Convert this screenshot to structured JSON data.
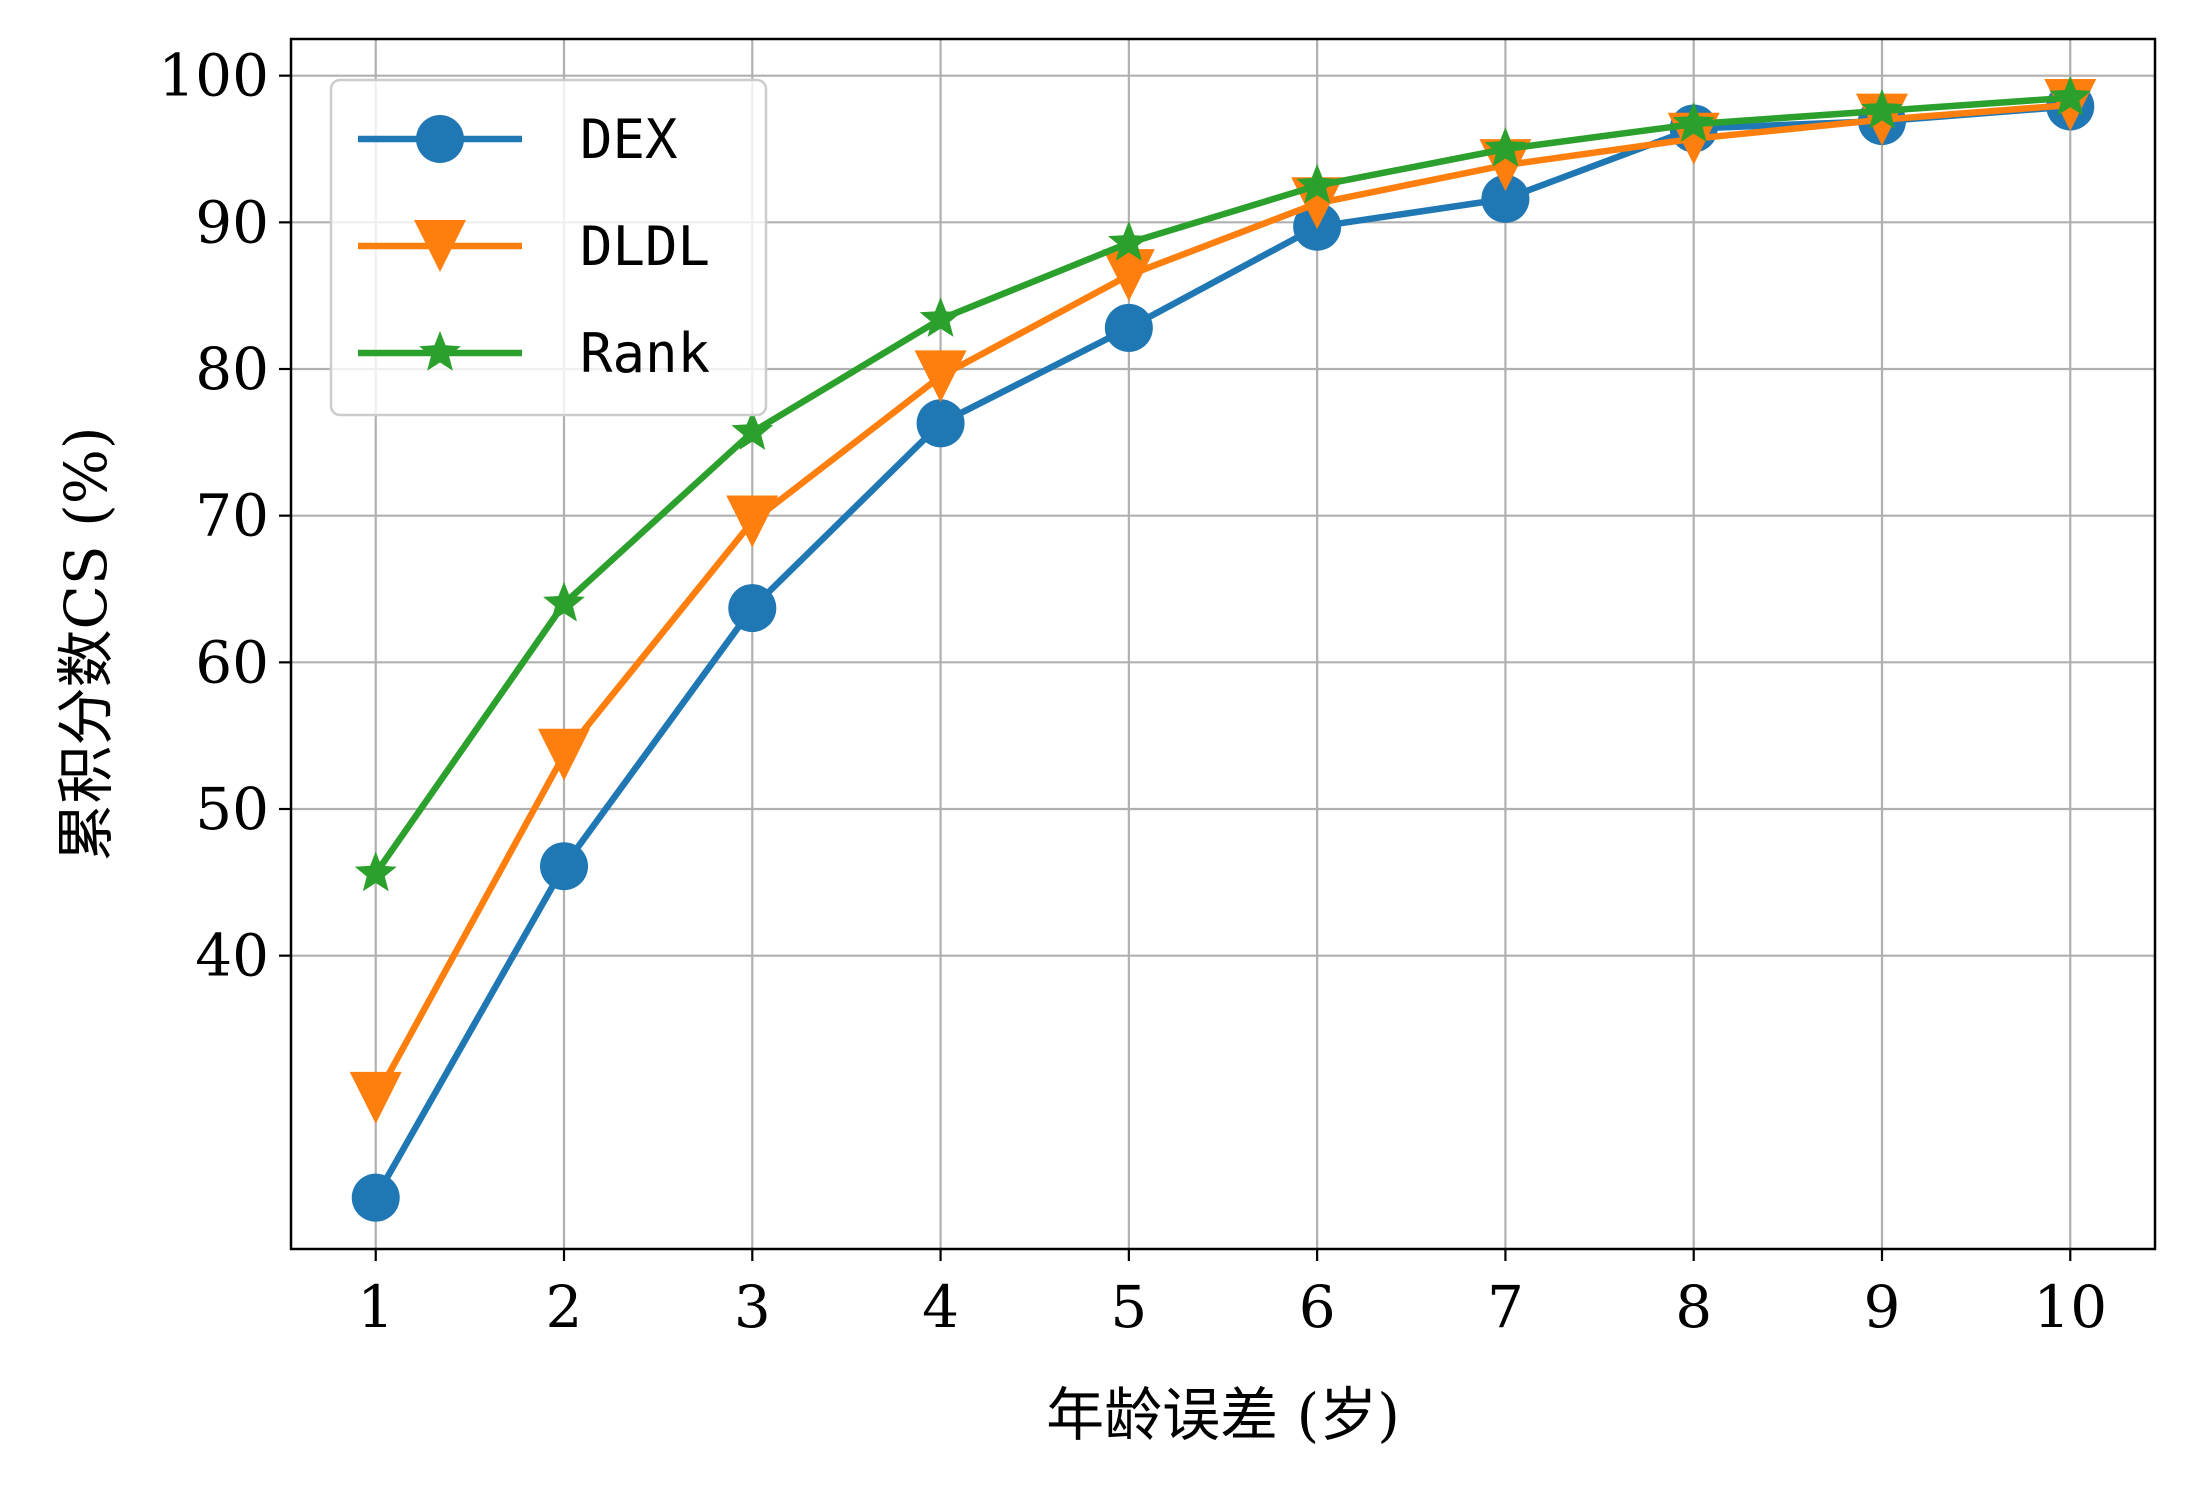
{
  "chart_data": {
    "type": "line",
    "title": "",
    "xlabel": "年龄误差 (岁)",
    "ylabel": "累积分数CS (%)",
    "x": [
      1,
      2,
      3,
      4,
      5,
      6,
      7,
      8,
      9,
      10
    ],
    "x_ticks": [
      1,
      2,
      3,
      4,
      5,
      6,
      7,
      8,
      9,
      10
    ],
    "y_ticks": [
      40,
      50,
      60,
      70,
      80,
      90,
      100
    ],
    "xlim": [
      0.55,
      10.45
    ],
    "ylim": [
      20,
      102.5
    ],
    "grid": true,
    "legend_position": "top-left",
    "series": [
      {
        "name": "DEX",
        "color": "#1f77b4",
        "marker": "circle",
        "values": [
          23.5,
          46.1,
          63.7,
          76.3,
          82.8,
          89.7,
          91.6,
          96.4,
          96.9,
          97.9
        ]
      },
      {
        "name": "DLDL",
        "color": "#ff7f0e",
        "marker": "triangle-down",
        "values": [
          30.3,
          53.7,
          69.6,
          79.5,
          86.4,
          91.3,
          93.9,
          95.7,
          97.0,
          98.0
        ]
      },
      {
        "name": "Rank",
        "color": "#2ca02c",
        "marker": "star",
        "values": [
          45.6,
          64.0,
          75.7,
          83.4,
          88.6,
          92.5,
          95.0,
          96.7,
          97.6,
          98.5
        ]
      }
    ]
  }
}
